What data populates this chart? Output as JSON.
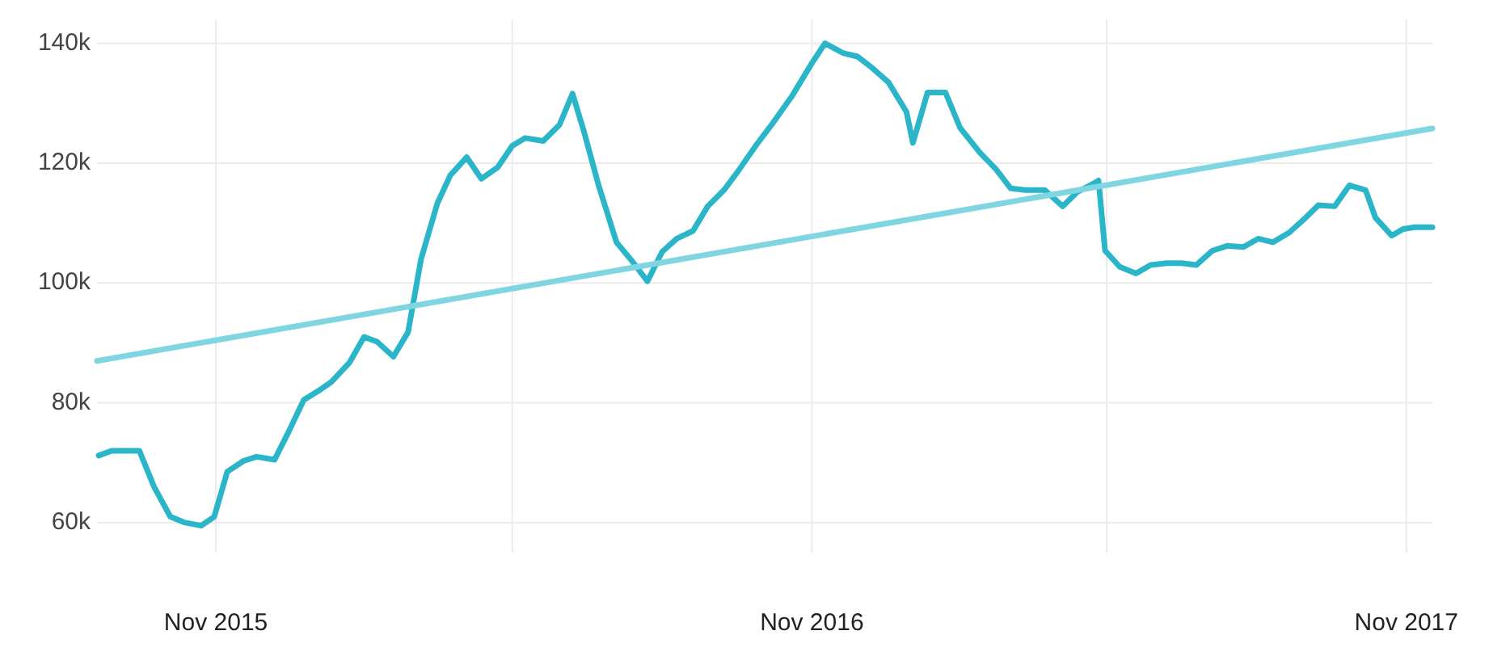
{
  "chart_data": {
    "type": "line",
    "xlim": [
      "2015-08-20",
      "2017-11-17"
    ],
    "ylim": [
      55000,
      144000
    ],
    "xticks": [
      {
        "value": "2015-11-01",
        "label": "Nov 2015"
      },
      {
        "value": "2016-05-01",
        "label": null
      },
      {
        "value": "2016-11-01",
        "label": "Nov 2016"
      },
      {
        "value": "2017-05-01",
        "label": null
      },
      {
        "value": "2017-11-01",
        "label": "Nov 2017"
      }
    ],
    "yticks": [
      {
        "value": 60000,
        "label": "60k"
      },
      {
        "value": 80000,
        "label": "80k"
      },
      {
        "value": 100000,
        "label": "100k"
      },
      {
        "value": 120000,
        "label": "120k"
      },
      {
        "value": 140000,
        "label": "140k"
      }
    ],
    "grid": true,
    "marker": "none",
    "line_style": "solid",
    "series": [
      {
        "color": "#2bb5c8",
        "x": [
          "2015-08-21",
          "2015-08-29",
          "2015-09-15",
          "2015-09-24",
          "2015-10-04",
          "2015-10-13",
          "2015-10-23",
          "2015-10-31",
          "2015-11-08",
          "2015-11-18",
          "2015-11-26",
          "2015-12-07",
          "2015-12-15",
          "2015-12-25",
          "2016-01-03",
          "2016-01-11",
          "2016-01-22",
          "2016-01-31",
          "2016-02-08",
          "2016-02-18",
          "2016-02-27",
          "2016-03-06",
          "2016-03-16",
          "2016-03-24",
          "2016-04-03",
          "2016-04-12",
          "2016-04-22",
          "2016-05-01",
          "2016-05-09",
          "2016-05-20",
          "2016-05-30",
          "2016-06-07",
          "2016-06-14",
          "2016-06-23",
          "2016-07-04",
          "2016-07-14",
          "2016-07-23",
          "2016-08-01",
          "2016-08-10",
          "2016-08-20",
          "2016-08-29",
          "2016-09-08",
          "2016-09-17",
          "2016-09-28",
          "2016-10-08",
          "2016-10-20",
          "2016-11-01",
          "2016-11-09",
          "2016-11-20",
          "2016-11-29",
          "2016-12-08",
          "2016-12-18",
          "2016-12-29",
          "2017-01-02",
          "2017-01-11",
          "2017-01-22",
          "2017-01-31",
          "2017-02-12",
          "2017-02-22",
          "2017-03-03",
          "2017-03-12",
          "2017-03-24",
          "2017-04-04",
          "2017-04-13",
          "2017-04-23",
          "2017-04-26",
          "2017-04-30",
          "2017-05-09",
          "2017-05-19",
          "2017-05-28",
          "2017-06-07",
          "2017-06-16",
          "2017-06-25",
          "2017-07-05",
          "2017-07-14",
          "2017-07-24",
          "2017-08-02",
          "2017-08-11",
          "2017-08-21",
          "2017-08-30",
          "2017-09-08",
          "2017-09-18",
          "2017-09-27",
          "2017-10-07",
          "2017-10-13",
          "2017-10-23",
          "2017-10-30",
          "2017-11-06",
          "2017-11-17"
        ],
        "values": [
          71200,
          72000,
          72000,
          66000,
          61000,
          60000,
          59500,
          61000,
          68500,
          70300,
          71000,
          70500,
          74800,
          80500,
          82000,
          83500,
          86700,
          91000,
          90200,
          87700,
          91800,
          104000,
          113300,
          118000,
          121000,
          117400,
          119300,
          122900,
          124200,
          123700,
          126400,
          131600,
          125300,
          116300,
          106800,
          103500,
          100300,
          105200,
          107400,
          108700,
          112800,
          115500,
          118800,
          123100,
          126700,
          131300,
          136700,
          140000,
          138400,
          137800,
          135900,
          133500,
          128600,
          123400,
          131800,
          131800,
          125900,
          121800,
          119000,
          115800,
          115500,
          115500,
          112800,
          115200,
          116600,
          117100,
          105400,
          102700,
          101600,
          103000,
          103300,
          103300,
          103000,
          105400,
          106200,
          106000,
          107400,
          106800,
          108400,
          110600,
          113000,
          112800,
          116300,
          115500,
          110900,
          107900,
          109000,
          109300,
          109300
        ]
      },
      {
        "color": "#7fd6e0",
        "x": [
          "2015-08-20",
          "2017-11-17"
        ],
        "values": [
          87000,
          125800
        ]
      }
    ]
  }
}
